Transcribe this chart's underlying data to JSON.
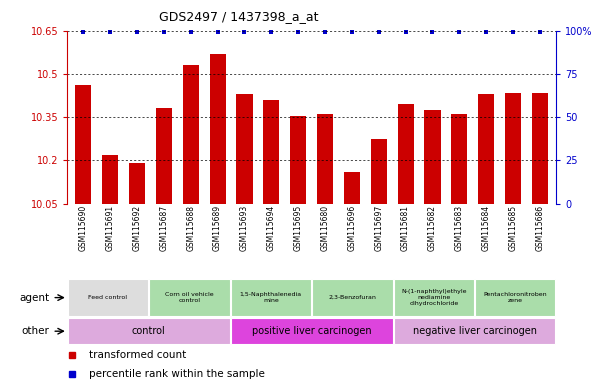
{
  "title": "GDS2497 / 1437398_a_at",
  "samples": [
    "GSM115690",
    "GSM115691",
    "GSM115692",
    "GSM115687",
    "GSM115688",
    "GSM115689",
    "GSM115693",
    "GSM115694",
    "GSM115695",
    "GSM115680",
    "GSM115696",
    "GSM115697",
    "GSM115681",
    "GSM115682",
    "GSM115683",
    "GSM115684",
    "GSM115685",
    "GSM115686"
  ],
  "bar_values": [
    10.46,
    10.22,
    10.19,
    10.38,
    10.53,
    10.57,
    10.43,
    10.41,
    10.355,
    10.36,
    10.16,
    10.275,
    10.395,
    10.375,
    10.36,
    10.43,
    10.435,
    10.435
  ],
  "ylim_min": 10.05,
  "ylim_max": 10.65,
  "yticks": [
    10.05,
    10.2,
    10.35,
    10.5,
    10.65
  ],
  "right_yticks": [
    0,
    25,
    50,
    75,
    100
  ],
  "bar_color": "#cc0000",
  "percentile_color": "#0000cc",
  "background_color": "#ffffff",
  "xlabels_bg": "#d8d8d8",
  "agent_groups": [
    {
      "label": "Feed control",
      "start": 0,
      "end": 3,
      "color": "#dddddd"
    },
    {
      "label": "Corn oil vehicle\ncontrol",
      "start": 3,
      "end": 6,
      "color": "#aaddaa"
    },
    {
      "label": "1,5-Naphthalenedia\nmine",
      "start": 6,
      "end": 9,
      "color": "#aaddaa"
    },
    {
      "label": "2,3-Benzofuran",
      "start": 9,
      "end": 12,
      "color": "#aaddaa"
    },
    {
      "label": "N-(1-naphthyl)ethyle\nnediamine\ndihydrochloride",
      "start": 12,
      "end": 15,
      "color": "#aaddaa"
    },
    {
      "label": "Pentachloronitroben\nzene",
      "start": 15,
      "end": 18,
      "color": "#aaddaa"
    }
  ],
  "other_groups": [
    {
      "label": "control",
      "start": 0,
      "end": 6,
      "color": "#ddaadd"
    },
    {
      "label": "positive liver carcinogen",
      "start": 6,
      "end": 12,
      "color": "#dd44dd"
    },
    {
      "label": "negative liver carcinogen",
      "start": 12,
      "end": 18,
      "color": "#ddaadd"
    }
  ],
  "legend_items": [
    {
      "label": "transformed count",
      "color": "#cc0000"
    },
    {
      "label": "percentile rank within the sample",
      "color": "#0000cc"
    }
  ]
}
